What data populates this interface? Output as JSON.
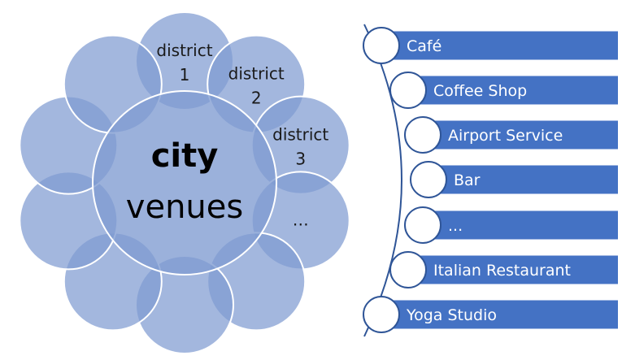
{
  "colors": {
    "petal_fill": "#7f9bd1",
    "petal_stroke": "#ffffff",
    "center_fill": "#7f9bd1",
    "bar_fill": "#4472c4",
    "bullet_fill": "#ffffff",
    "bullet_stroke": "#2f5597",
    "timeline_line": "#2f5597"
  },
  "cycle": {
    "center": {
      "title": "city",
      "subtitle": "venues"
    },
    "petals": [
      {
        "label_line1": "district",
        "label_line2": "1"
      },
      {
        "label_line1": "district",
        "label_line2": "2"
      },
      {
        "label_line1": "district",
        "label_line2": "3"
      },
      {
        "label_line1": "…",
        "label_line2": ""
      },
      {
        "label_line1": "",
        "label_line2": ""
      },
      {
        "label_line1": "",
        "label_line2": ""
      },
      {
        "label_line1": "",
        "label_line2": ""
      },
      {
        "label_line1": "",
        "label_line2": ""
      },
      {
        "label_line1": "",
        "label_line2": ""
      },
      {
        "label_line1": "",
        "label_line2": ""
      }
    ]
  },
  "venue_list": {
    "items": [
      {
        "label": "Café"
      },
      {
        "label": "Coffee Shop"
      },
      {
        "label": "Airport Service"
      },
      {
        "label": "Bar"
      },
      {
        "label": "..."
      },
      {
        "label": "Italian Restaurant"
      },
      {
        "label": "Yoga Studio"
      }
    ]
  }
}
